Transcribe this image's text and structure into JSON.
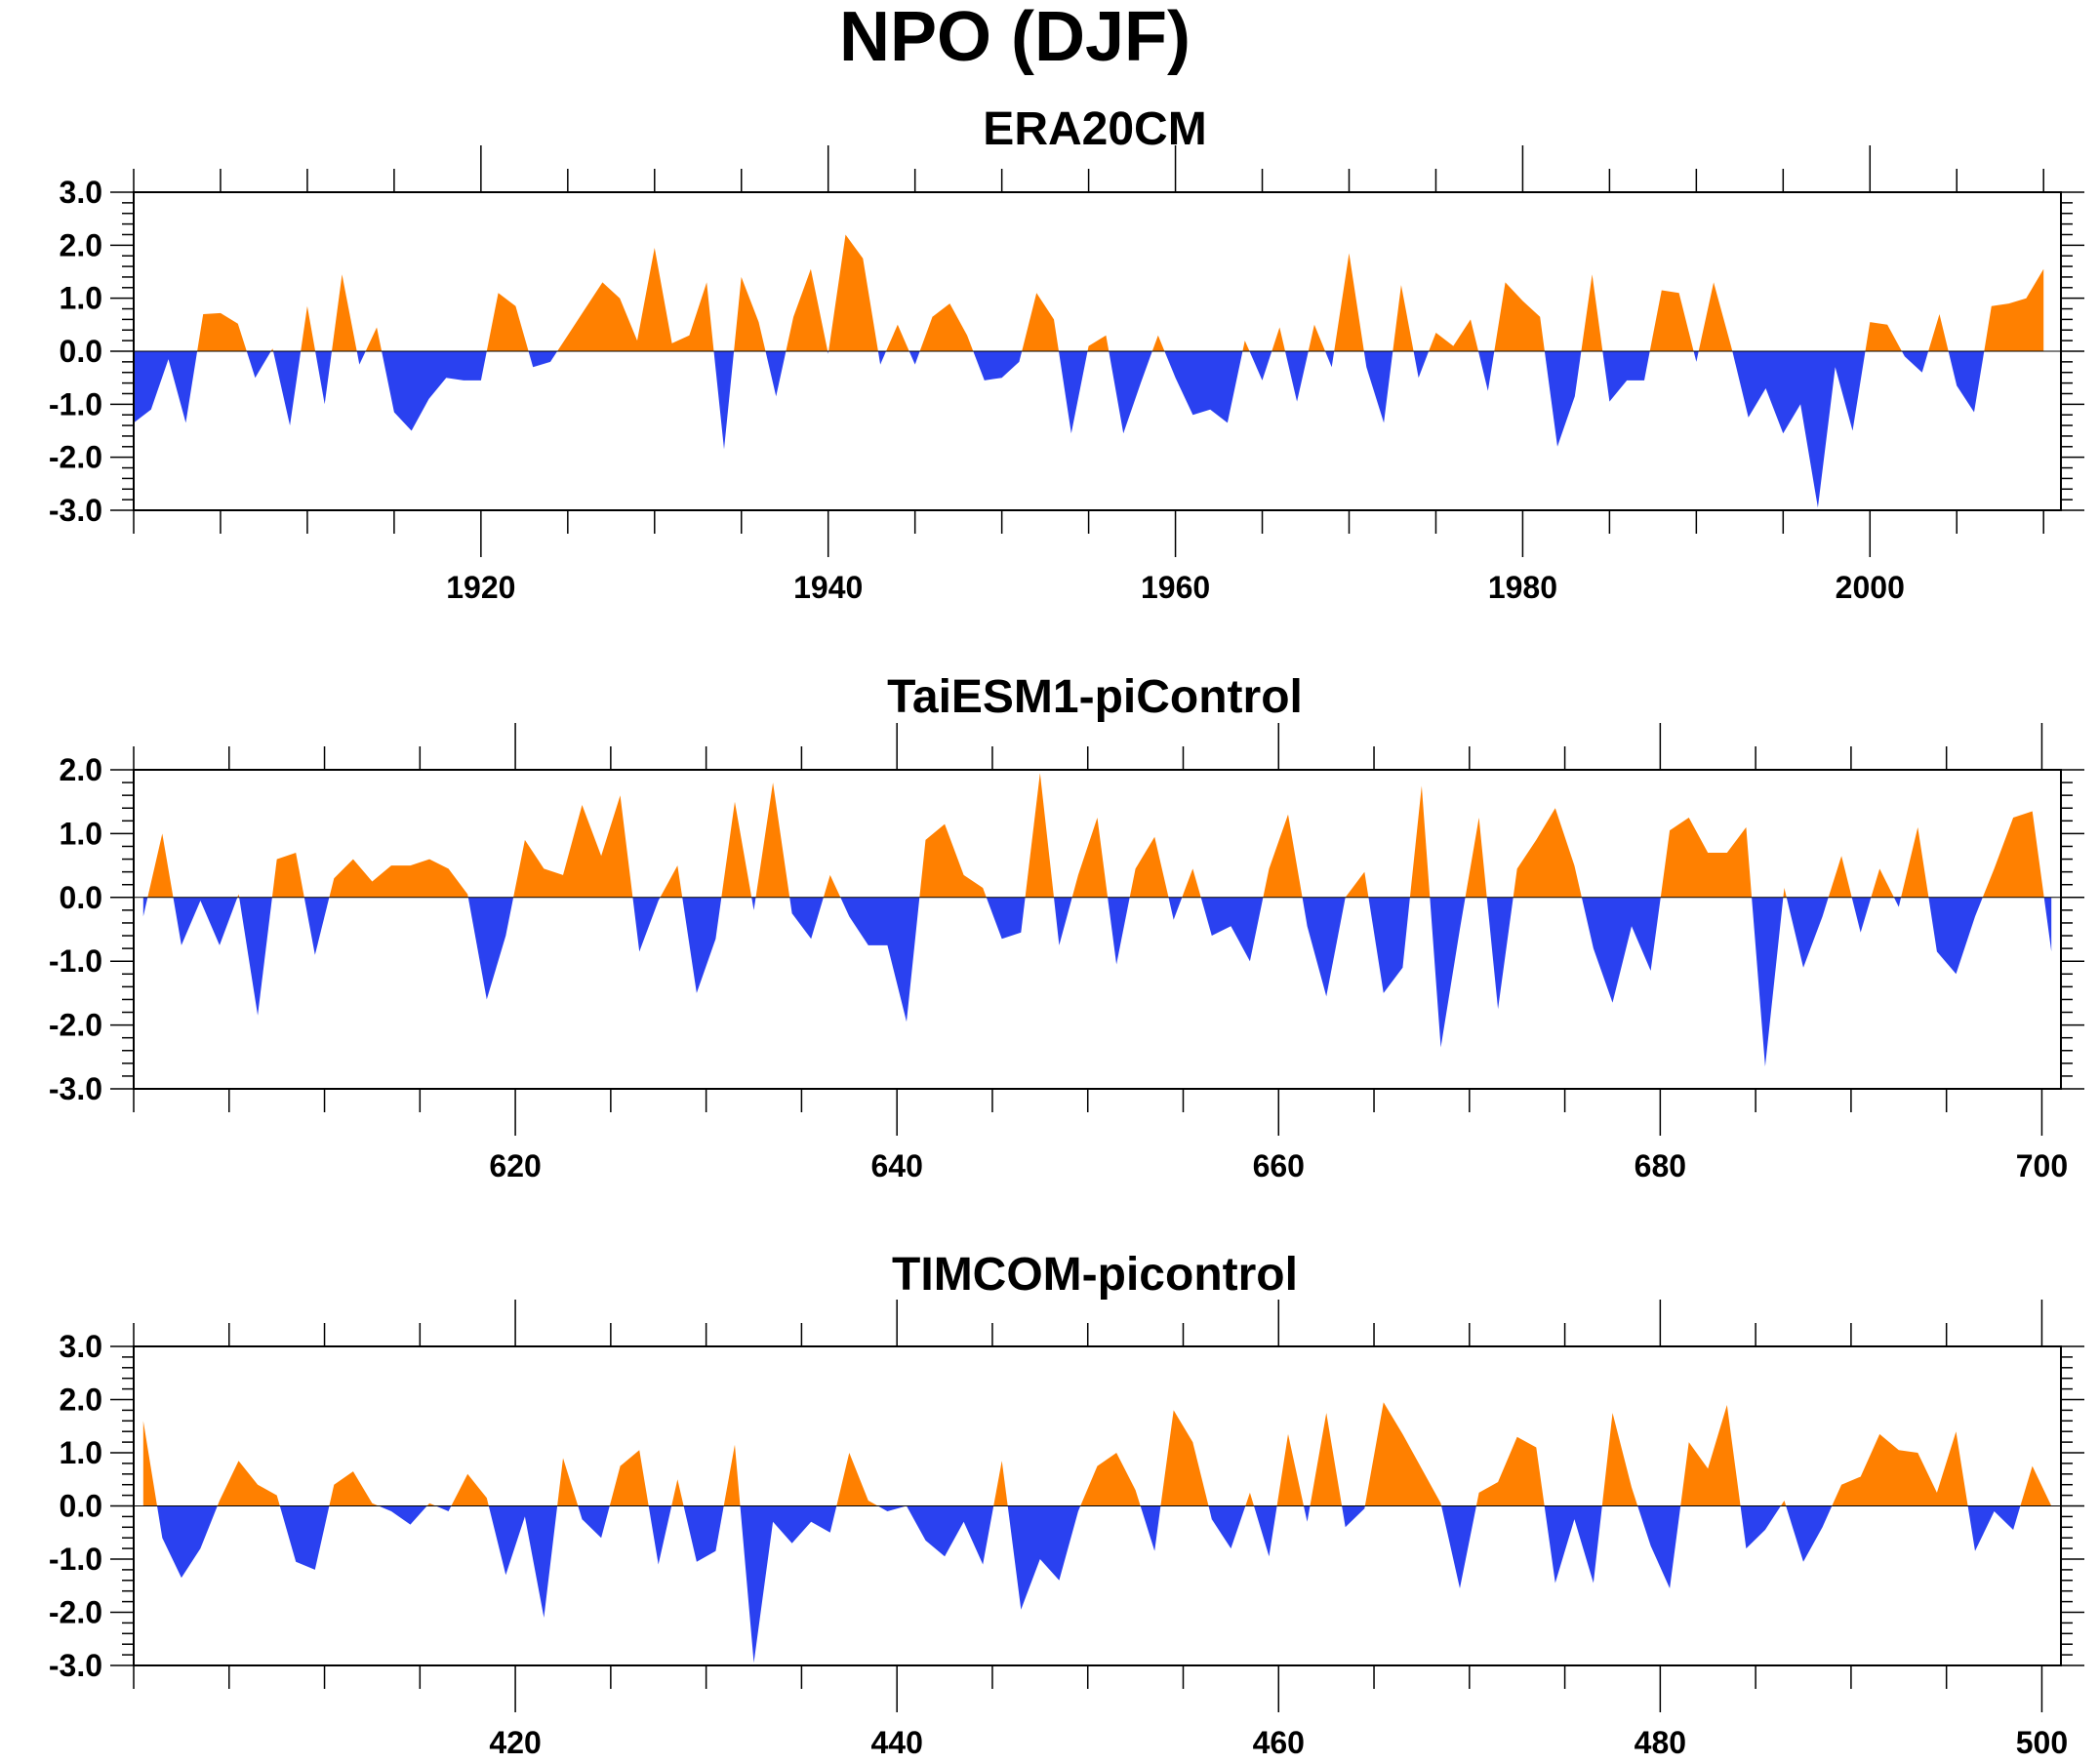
{
  "figure": {
    "title": "NPO (DJF)"
  },
  "colors": {
    "positive": "#ff8000",
    "negative": "#2a41f0",
    "axis": "#000000",
    "zero_line": "#000000"
  },
  "chart_data": [
    {
      "type": "area",
      "title": "ERA20CM",
      "xlabel": "",
      "ylabel": "",
      "xlim": [
        1900,
        2011
      ],
      "ylim": [
        -3.0,
        3.0
      ],
      "xticks": [
        1920,
        1940,
        1960,
        1980,
        2000
      ],
      "xtick_labels": [
        "1920",
        "1940",
        "1960",
        "1980",
        "2000"
      ],
      "xminor_step": 5,
      "yticks": [
        -3.0,
        -2.0,
        -1.0,
        0.0,
        1.0,
        2.0,
        3.0
      ],
      "ytick_labels": [
        "-3.0",
        "-2.0",
        "-1.0",
        "0.0",
        "1.0",
        "2.0",
        "3.0"
      ],
      "yminor_step": 0.2,
      "x_start": 1900,
      "x_step": 1,
      "values": [
        -1.35,
        -1.1,
        -0.15,
        -1.35,
        0.7,
        0.72,
        0.52,
        -0.5,
        0.05,
        -1.4,
        0.85,
        -1.0,
        1.45,
        -0.25,
        0.45,
        -1.15,
        -1.5,
        -0.9,
        -0.5,
        -0.55,
        -0.55,
        1.1,
        0.85,
        -0.3,
        -0.2,
        0.3,
        0.8,
        1.3,
        1.0,
        0.2,
        1.95,
        0.15,
        0.3,
        1.3,
        -1.85,
        1.4,
        0.55,
        -0.85,
        0.65,
        1.55,
        -0.05,
        2.2,
        1.75,
        -0.25,
        0.5,
        -0.25,
        0.65,
        0.9,
        0.3,
        -0.55,
        -0.5,
        -0.2,
        1.1,
        0.6,
        -1.55,
        0.1,
        0.3,
        -1.55,
        -0.6,
        0.3,
        -0.5,
        -1.2,
        -1.1,
        -1.35,
        0.2,
        -0.55,
        0.45,
        -0.95,
        0.5,
        -0.3,
        1.85,
        -0.3,
        -1.35,
        1.25,
        -0.5,
        0.35,
        0.1,
        0.6,
        -0.75,
        1.3,
        0.95,
        0.65,
        -1.8,
        -0.85,
        1.45,
        -0.95,
        -0.55,
        -0.55,
        1.15,
        1.1,
        -0.2,
        1.3,
        0.1,
        -1.25,
        -0.7,
        -1.55,
        -1.0,
        -2.95,
        -0.3,
        -1.5,
        0.55,
        0.5,
        -0.1,
        -0.4,
        0.7,
        -0.65,
        -1.15,
        0.85,
        0.9,
        1.0,
        1.55
      ]
    },
    {
      "type": "area",
      "title": "TaiESM1-piControl",
      "xlabel": "",
      "ylabel": "",
      "xlim": [
        600,
        701
      ],
      "ylim": [
        -3.0,
        2.0
      ],
      "xticks": [
        620,
        640,
        660,
        680,
        700
      ],
      "xtick_labels": [
        "620",
        "640",
        "660",
        "680",
        "700"
      ],
      "xminor_step": 5,
      "yticks": [
        -3.0,
        -2.0,
        -1.0,
        0.0,
        1.0,
        2.0
      ],
      "ytick_labels": [
        "-3.0",
        "-2.0",
        "-1.0",
        "0.0",
        "1.0",
        "2.0"
      ],
      "yminor_step": 0.2,
      "x_start": 600.5,
      "x_step": 1,
      "values": [
        -0.3,
        1.0,
        -0.75,
        -0.05,
        -0.75,
        0.05,
        -1.85,
        0.6,
        0.7,
        -0.9,
        0.3,
        0.6,
        0.25,
        0.5,
        0.5,
        0.6,
        0.45,
        0.05,
        -1.6,
        -0.6,
        0.9,
        0.45,
        0.35,
        1.45,
        0.65,
        1.6,
        -0.85,
        -0.05,
        0.5,
        -1.5,
        -0.65,
        1.5,
        -0.2,
        1.8,
        -0.25,
        -0.65,
        0.35,
        -0.3,
        -0.75,
        -0.75,
        -1.95,
        0.9,
        1.15,
        0.35,
        0.15,
        -0.65,
        -0.55,
        1.95,
        -0.75,
        0.35,
        1.25,
        -1.05,
        0.45,
        0.95,
        -0.35,
        0.45,
        -0.6,
        -0.45,
        -1.0,
        0.45,
        1.3,
        -0.45,
        -1.55,
        0.0,
        0.4,
        -1.5,
        -1.1,
        1.75,
        -2.35,
        -0.5,
        1.25,
        -1.75,
        0.45,
        0.9,
        1.4,
        0.5,
        -0.8,
        -1.65,
        -0.45,
        -1.15,
        1.05,
        1.25,
        0.7,
        0.7,
        1.1,
        -2.65,
        0.15,
        -1.1,
        -0.3,
        0.65,
        -0.55,
        0.45,
        -0.15,
        1.1,
        -0.85,
        -1.2,
        -0.3,
        0.45,
        1.25,
        1.35,
        -0.85
      ]
    },
    {
      "type": "area",
      "title": "TIMCOM-picontrol",
      "xlabel": "",
      "ylabel": "",
      "xlim": [
        400,
        501
      ],
      "ylim": [
        -3.0,
        3.0
      ],
      "xticks": [
        420,
        440,
        460,
        480,
        500
      ],
      "xtick_labels": [
        "420",
        "440",
        "460",
        "480",
        "500"
      ],
      "xminor_step": 5,
      "yticks": [
        -3.0,
        -2.0,
        -1.0,
        0.0,
        1.0,
        2.0,
        3.0
      ],
      "ytick_labels": [
        "-3.0",
        "-2.0",
        "-1.0",
        "0.0",
        "1.0",
        "2.0",
        "3.0"
      ],
      "yminor_step": 0.2,
      "x_start": 400.5,
      "x_step": 1,
      "values": [
        1.6,
        -0.6,
        -1.35,
        -0.8,
        0.1,
        0.85,
        0.4,
        0.2,
        -1.05,
        -1.2,
        0.4,
        0.65,
        0.05,
        -0.1,
        -0.35,
        0.05,
        -0.1,
        0.6,
        0.15,
        -1.3,
        -0.2,
        -2.1,
        0.9,
        -0.25,
        -0.6,
        0.75,
        1.05,
        -1.1,
        0.5,
        -1.05,
        -0.85,
        1.15,
        -2.95,
        -0.3,
        -0.7,
        -0.3,
        -0.5,
        1.0,
        0.1,
        -0.1,
        0.0,
        -0.65,
        -0.95,
        -0.3,
        -1.1,
        0.85,
        -1.95,
        -1.0,
        -1.4,
        -0.1,
        0.75,
        1.0,
        0.3,
        -0.85,
        1.8,
        1.2,
        -0.25,
        -0.8,
        0.25,
        -0.95,
        1.35,
        -0.3,
        1.75,
        -0.4,
        -0.05,
        1.95,
        1.35,
        0.7,
        0.05,
        -1.55,
        0.25,
        0.45,
        1.3,
        1.1,
        -1.45,
        -0.25,
        -1.45,
        1.75,
        0.35,
        -0.75,
        -1.55,
        1.2,
        0.7,
        1.9,
        -0.8,
        -0.45,
        0.1,
        -1.05,
        -0.4,
        0.4,
        0.55,
        1.35,
        1.05,
        1.0,
        0.25,
        1.4,
        -0.85,
        -0.1,
        -0.45,
        0.75,
        0.0
      ]
    }
  ]
}
